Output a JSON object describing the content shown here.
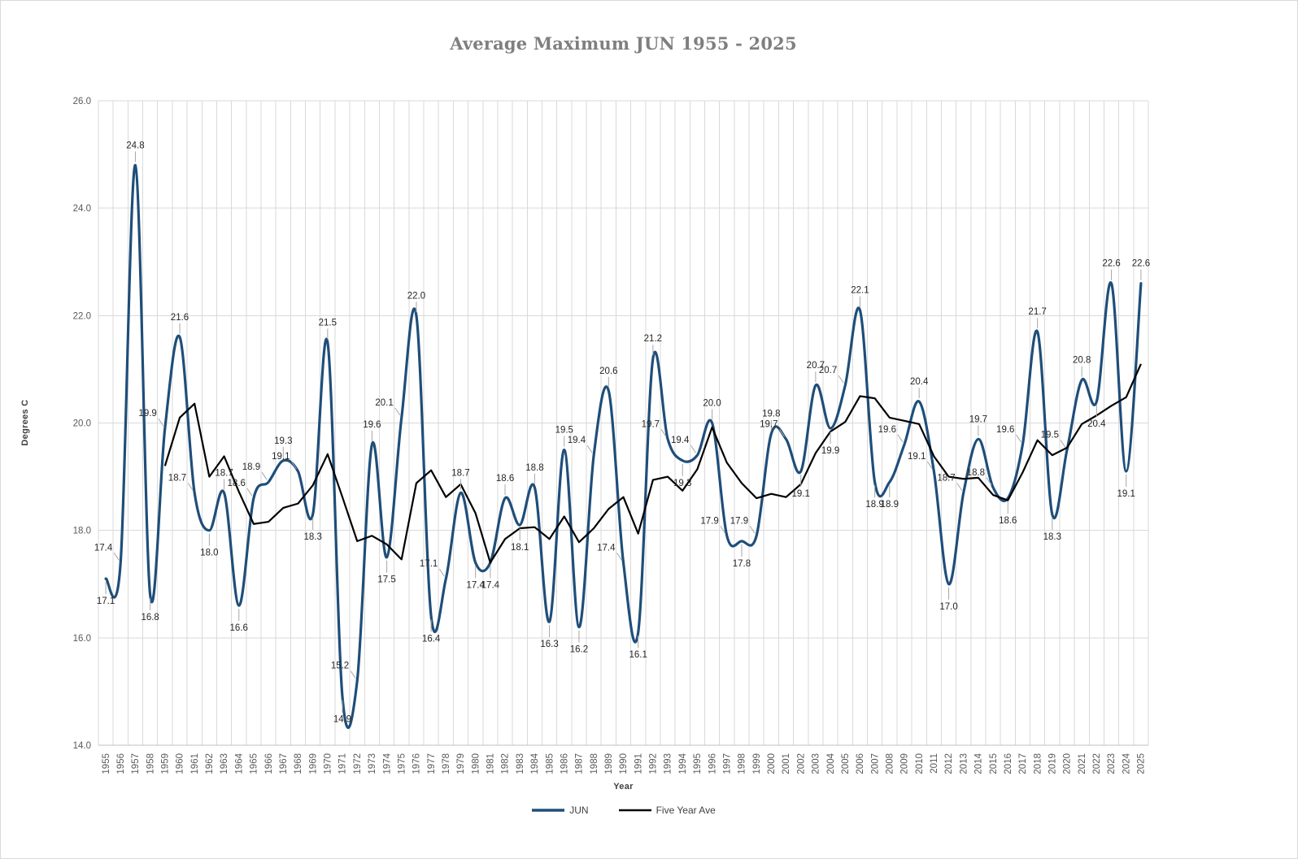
{
  "chart_data": {
    "type": "line",
    "title": "Average Maximum JUN 1955 - 2025",
    "xlabel": "Year",
    "ylabel": "Degrees C",
    "ylim": [
      14.0,
      26.0
    ],
    "ytick_step": 2.0,
    "yticks": [
      "14.0",
      "16.0",
      "18.0",
      "20.0",
      "22.0",
      "24.0",
      "26.0"
    ],
    "grid": "both",
    "legend_position": "bottom",
    "x": [
      1955,
      1956,
      1957,
      1958,
      1959,
      1960,
      1961,
      1962,
      1963,
      1964,
      1965,
      1966,
      1967,
      1968,
      1969,
      1970,
      1971,
      1972,
      1973,
      1974,
      1975,
      1976,
      1977,
      1978,
      1979,
      1980,
      1981,
      1982,
      1983,
      1984,
      1985,
      1986,
      1987,
      1988,
      1989,
      1990,
      1991,
      1992,
      1993,
      1994,
      1995,
      1996,
      1997,
      1998,
      1999,
      2000,
      2001,
      2002,
      2003,
      2004,
      2005,
      2006,
      2007,
      2008,
      2009,
      2010,
      2011,
      2012,
      2013,
      2014,
      2015,
      2016,
      2017,
      2018,
      2019,
      2020,
      2021,
      2022,
      2023,
      2024,
      2025
    ],
    "series": [
      {
        "name": "JUN",
        "color": "#1f4e79",
        "style": "smooth",
        "data_labels": true,
        "label_format": "0.1f",
        "values": [
          17.1,
          17.4,
          24.8,
          16.8,
          19.9,
          21.6,
          18.7,
          18.0,
          18.7,
          16.6,
          18.6,
          18.9,
          19.3,
          19.1,
          18.3,
          21.5,
          14.9,
          15.2,
          19.6,
          17.5,
          20.1,
          22.0,
          16.4,
          17.1,
          18.7,
          17.4,
          17.4,
          18.6,
          18.1,
          18.8,
          16.3,
          19.5,
          16.2,
          19.4,
          20.6,
          17.4,
          16.1,
          21.2,
          19.7,
          19.3,
          19.4,
          20.0,
          17.9,
          17.8,
          17.9,
          19.8,
          19.7,
          19.1,
          20.7,
          19.9,
          20.7,
          22.1,
          18.9,
          18.9,
          19.6,
          20.4,
          19.1,
          17.0,
          18.7,
          19.7,
          18.8,
          18.6,
          19.6,
          21.7,
          18.3,
          19.5,
          20.8,
          20.4,
          22.6,
          19.1,
          22.6
        ]
      },
      {
        "name": "Five Year Ave",
        "color": "#000000",
        "style": "straight",
        "data_labels": false,
        "start_x": 1959,
        "values": [
          19.2,
          20.1,
          20.36,
          19.0,
          19.38,
          18.72,
          18.12,
          18.16,
          18.42,
          18.5,
          18.84,
          19.42,
          18.62,
          17.8,
          17.9,
          17.74,
          17.46,
          18.88,
          19.12,
          18.62,
          18.86,
          18.32,
          17.4,
          17.84,
          18.04,
          18.06,
          17.84,
          18.26,
          17.78,
          18.04,
          18.4,
          18.62,
          17.94,
          18.94,
          19.0,
          18.74,
          19.14,
          19.92,
          19.26,
          18.88,
          18.6,
          18.68,
          18.62,
          18.86,
          19.44,
          19.84,
          20.02,
          20.5,
          20.46,
          20.1,
          20.04,
          19.98,
          19.38,
          19.0,
          18.96,
          18.98,
          18.66,
          18.56,
          19.08,
          19.68,
          19.4,
          19.54,
          19.98,
          20.14,
          20.32,
          20.48,
          21.1
        ]
      }
    ]
  }
}
